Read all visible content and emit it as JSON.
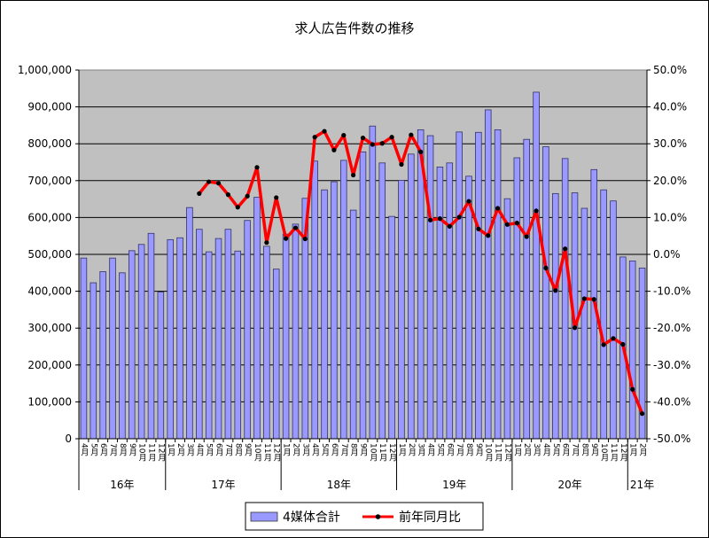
{
  "chart_data": {
    "type": "bar",
    "title": "求人広告件数の推移",
    "xlabel": "",
    "ylabel": "",
    "ylim": [
      0,
      1000000
    ],
    "y2lim": [
      -0.5,
      0.5
    ],
    "left_ticks": [
      "1,000,000",
      "900,000",
      "800,000",
      "700,000",
      "600,000",
      "500,000",
      "400,000",
      "300,000",
      "200,000",
      "100,000",
      "0"
    ],
    "right_ticks": [
      "50.0%",
      "40.0%",
      "30.0%",
      "20.0%",
      "10.0%",
      "0.0%",
      "-10.0%",
      "-20.0%",
      "-30.0%",
      "-40.0%",
      "-50.0%"
    ],
    "month_labels": [
      "4月",
      "5月",
      "6月",
      "7月",
      "8月",
      "9月",
      "10月",
      "11月",
      "12月",
      "1月",
      "2月",
      "3月",
      "4月",
      "5月",
      "6月",
      "7月",
      "8月",
      "9月",
      "10月",
      "11月",
      "12月",
      "1月",
      "2月",
      "3月",
      "4月",
      "5月",
      "6月",
      "7月",
      "8月",
      "9月",
      "10月",
      "11月",
      "12月",
      "1月",
      "2月",
      "3月",
      "4月",
      "5月",
      "6月",
      "7月",
      "8月",
      "9月",
      "10月",
      "11月",
      "12月",
      "1月",
      "2月",
      "3月",
      "4月",
      "5月",
      "6月",
      "7月",
      "8月",
      "9月",
      "10月",
      "11月",
      "12月",
      "1月",
      "2月",
      "3月"
    ],
    "year_groups": [
      {
        "label": "16年",
        "start": 0,
        "count": 9
      },
      {
        "label": "17年",
        "start": 9,
        "count": 12
      },
      {
        "label": "18年",
        "start": 21,
        "count": 12
      },
      {
        "label": "19年",
        "start": 33,
        "count": 12
      },
      {
        "label": "20年",
        "start": 45,
        "count": 12
      },
      {
        "label": "21年",
        "start": 57,
        "count": 3
      }
    ],
    "series": [
      {
        "name": "4媒体合計",
        "type": "bar",
        "color": "#9999ff",
        "values": [
          490000,
          423000,
          453000,
          490000,
          450000,
          510000,
          527000,
          557000,
          398000,
          540000,
          545000,
          627000,
          568000,
          507000,
          543000,
          568000,
          509000,
          592000,
          655000,
          522000,
          460000,
          555000,
          582000,
          652000,
          753000,
          675000,
          697000,
          755000,
          620000,
          778000,
          848000,
          748000,
          603000,
          701000,
          772000,
          838000,
          822000,
          737000,
          748000,
          832000,
          712000,
          831000,
          892000,
          838000,
          651000,
          762000,
          812000,
          940000,
          792000,
          665000,
          760000,
          667000,
          625000,
          730000,
          675000,
          645000,
          493000,
          482000,
          463000
        ]
      },
      {
        "name": "前年同月比",
        "type": "line",
        "color": "#ff0000",
        "axis": "right",
        "start_index": 12,
        "values": [
          0.165,
          0.197,
          0.193,
          0.162,
          0.128,
          0.158,
          0.236,
          0.032,
          0.154,
          0.043,
          0.072,
          0.042,
          0.318,
          0.334,
          0.283,
          0.323,
          0.215,
          0.316,
          0.298,
          0.301,
          0.318,
          0.244,
          0.324,
          0.278,
          0.093,
          0.097,
          0.076,
          0.101,
          0.144,
          0.069,
          0.051,
          0.125,
          0.081,
          0.085,
          0.048,
          0.118,
          -0.037,
          -0.098,
          0.015,
          -0.199,
          -0.12,
          -0.122,
          -0.245,
          -0.228,
          -0.244,
          -0.366,
          -0.432
        ]
      }
    ],
    "grid": true,
    "legend_position": "bottom"
  }
}
